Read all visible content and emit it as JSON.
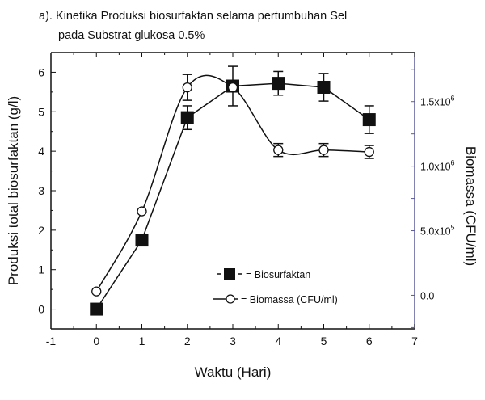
{
  "chart_data": {
    "type": "line",
    "title_lines": [
      "a). Kinetika Produksi biosurfaktan selama pertumbuhan Sel",
      "pada Substrat glukosa 0.5%"
    ],
    "xlabel": "Waktu (Hari)",
    "ylabel": "Produksi total biosurfaktan (g/l)",
    "y2label": "Biomassa (CFU/ml)",
    "xlim": [
      -1,
      7
    ],
    "ylim": [
      -0.5,
      6.5
    ],
    "y2lim": [
      -260000,
      1880000
    ],
    "x_ticks": [
      "-1",
      "0",
      "1",
      "2",
      "3",
      "4",
      "5",
      "6",
      "7"
    ],
    "y_ticks": [
      "0",
      "1",
      "2",
      "3",
      "4",
      "5",
      "6"
    ],
    "y2_ticks": [
      {
        "value": 0,
        "base": "0.0",
        "exp": ""
      },
      {
        "value": 500000,
        "base": "5.0x10",
        "exp": "5"
      },
      {
        "value": 1000000,
        "base": "1.0x10",
        "exp": "6"
      },
      {
        "value": 1500000,
        "base": "1.5x10",
        "exp": "6"
      }
    ],
    "grid": false,
    "legend_position": "bottom-right",
    "series": [
      {
        "name": "= Biosurfaktan",
        "axis": "left",
        "marker": "filled-square",
        "x": [
          0,
          1,
          2,
          3,
          4,
          5,
          6
        ],
        "y": [
          0,
          1.75,
          4.85,
          5.65,
          5.72,
          5.62,
          4.8
        ],
        "err": [
          0,
          0,
          0.3,
          0.5,
          0.3,
          0.35,
          0.35
        ]
      },
      {
        "name": "= Biomassa (CFU/ml)",
        "axis": "right",
        "marker": "open-circle",
        "x": [
          0,
          1,
          2,
          3,
          4,
          5,
          6
        ],
        "y": [
          30000,
          650000,
          1610000,
          1610000,
          1125000,
          1125000,
          1110000
        ],
        "err": [
          0,
          0,
          100000,
          0,
          50000,
          50000,
          50000
        ]
      }
    ],
    "colors": {
      "axis": "#111111",
      "right_axis": "#5a5a9a",
      "series": "#111111"
    }
  }
}
